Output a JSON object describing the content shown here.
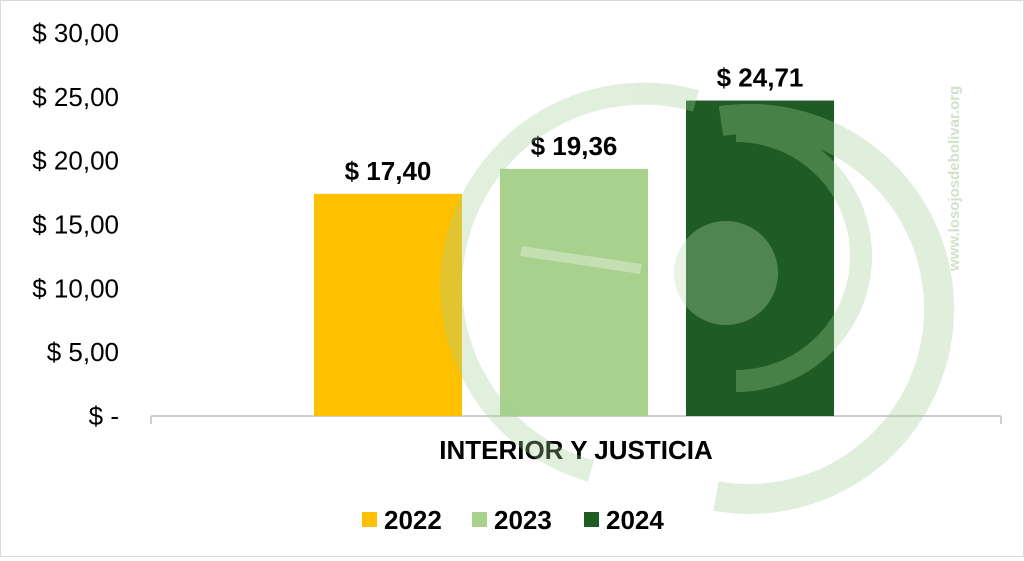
{
  "chart_data": {
    "type": "bar",
    "categories": [
      "INTERIOR Y JUSTICIA"
    ],
    "series": [
      {
        "name": "2022",
        "values": [
          17.4
        ],
        "label": "$ 17,40",
        "color": "#ffc000"
      },
      {
        "name": "2023",
        "values": [
          19.36
        ],
        "label": "$ 19,36",
        "color": "#a9d18e"
      },
      {
        "name": "2024",
        "values": [
          24.71
        ],
        "label": "$ 24,71",
        "color": "#1e5c24"
      }
    ],
    "ylim": [
      0,
      30
    ],
    "yticks": [
      0,
      5,
      10,
      15,
      20,
      25,
      30
    ],
    "ytick_labels": [
      "$ -",
      "$ 5,00",
      "$ 10,00",
      "$ 15,00",
      "$ 20,00",
      "$ 25,00",
      "$ 30,00"
    ],
    "grid": false,
    "legend_position": "bottom",
    "watermark": "www.losojosdebolivar.org"
  }
}
